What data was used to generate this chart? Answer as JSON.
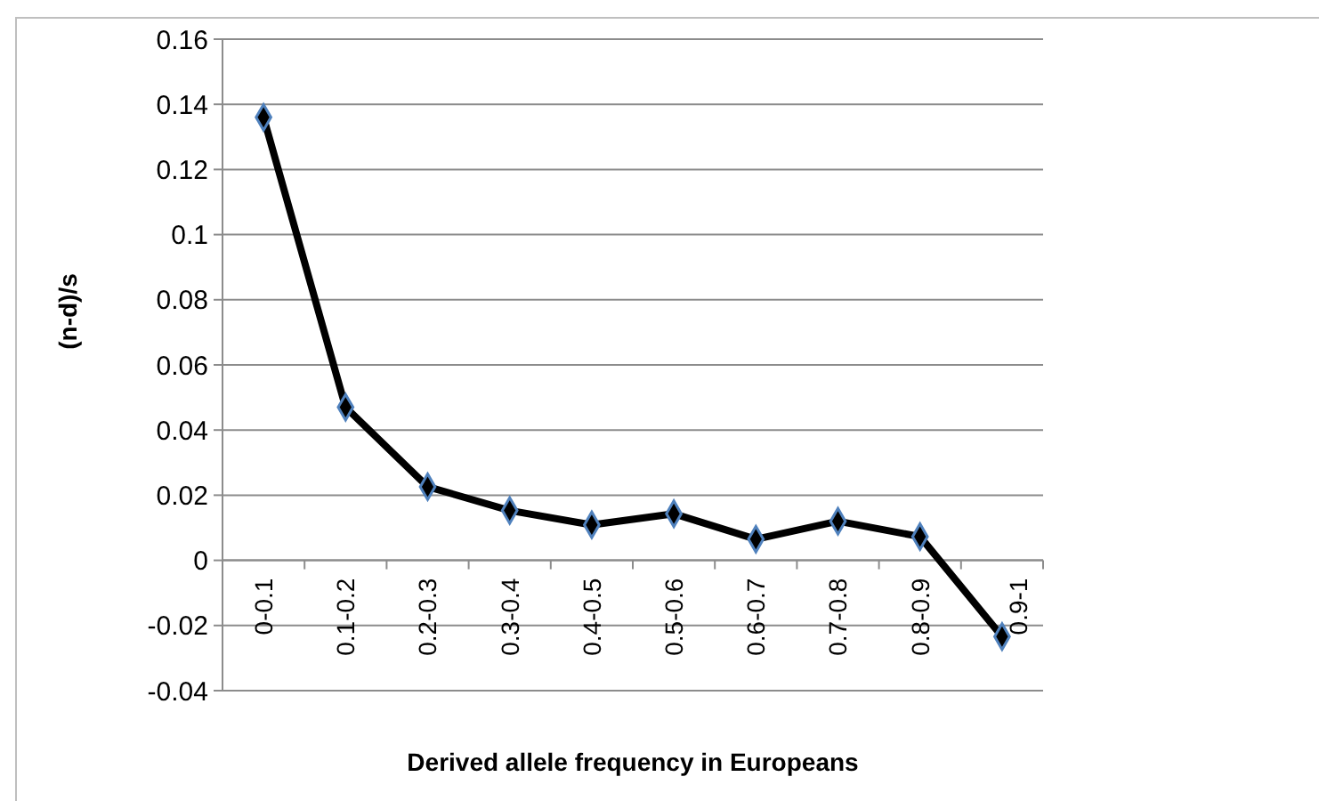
{
  "chart_data": {
    "type": "line",
    "xlabel": "Derived allele frequency in Europeans",
    "ylabel": "(n-d)/s",
    "categories": [
      "0-0.1",
      "0.1-0.2",
      "0.2-0.3",
      "0.3-0.4",
      "0.4-0.5",
      "0.5-0.6",
      "0.6-0.7",
      "0.7-0.8",
      "0.8-0.9",
      "0.9-1"
    ],
    "series": [
      {
        "color": "#000000",
        "values": [
          0.136,
          0.047,
          0.0226,
          0.0153,
          0.0109,
          0.0143,
          0.0065,
          0.012,
          0.0073,
          -0.0234
        ]
      }
    ],
    "ylim": [
      -0.04,
      0.16
    ],
    "yticks": [
      -0.04,
      -0.02,
      0,
      0.02,
      0.04,
      0.06,
      0.08,
      0.1,
      0.12,
      0.14,
      0.16
    ],
    "grid": "y",
    "marker": "diamond",
    "line_style": "solid"
  }
}
